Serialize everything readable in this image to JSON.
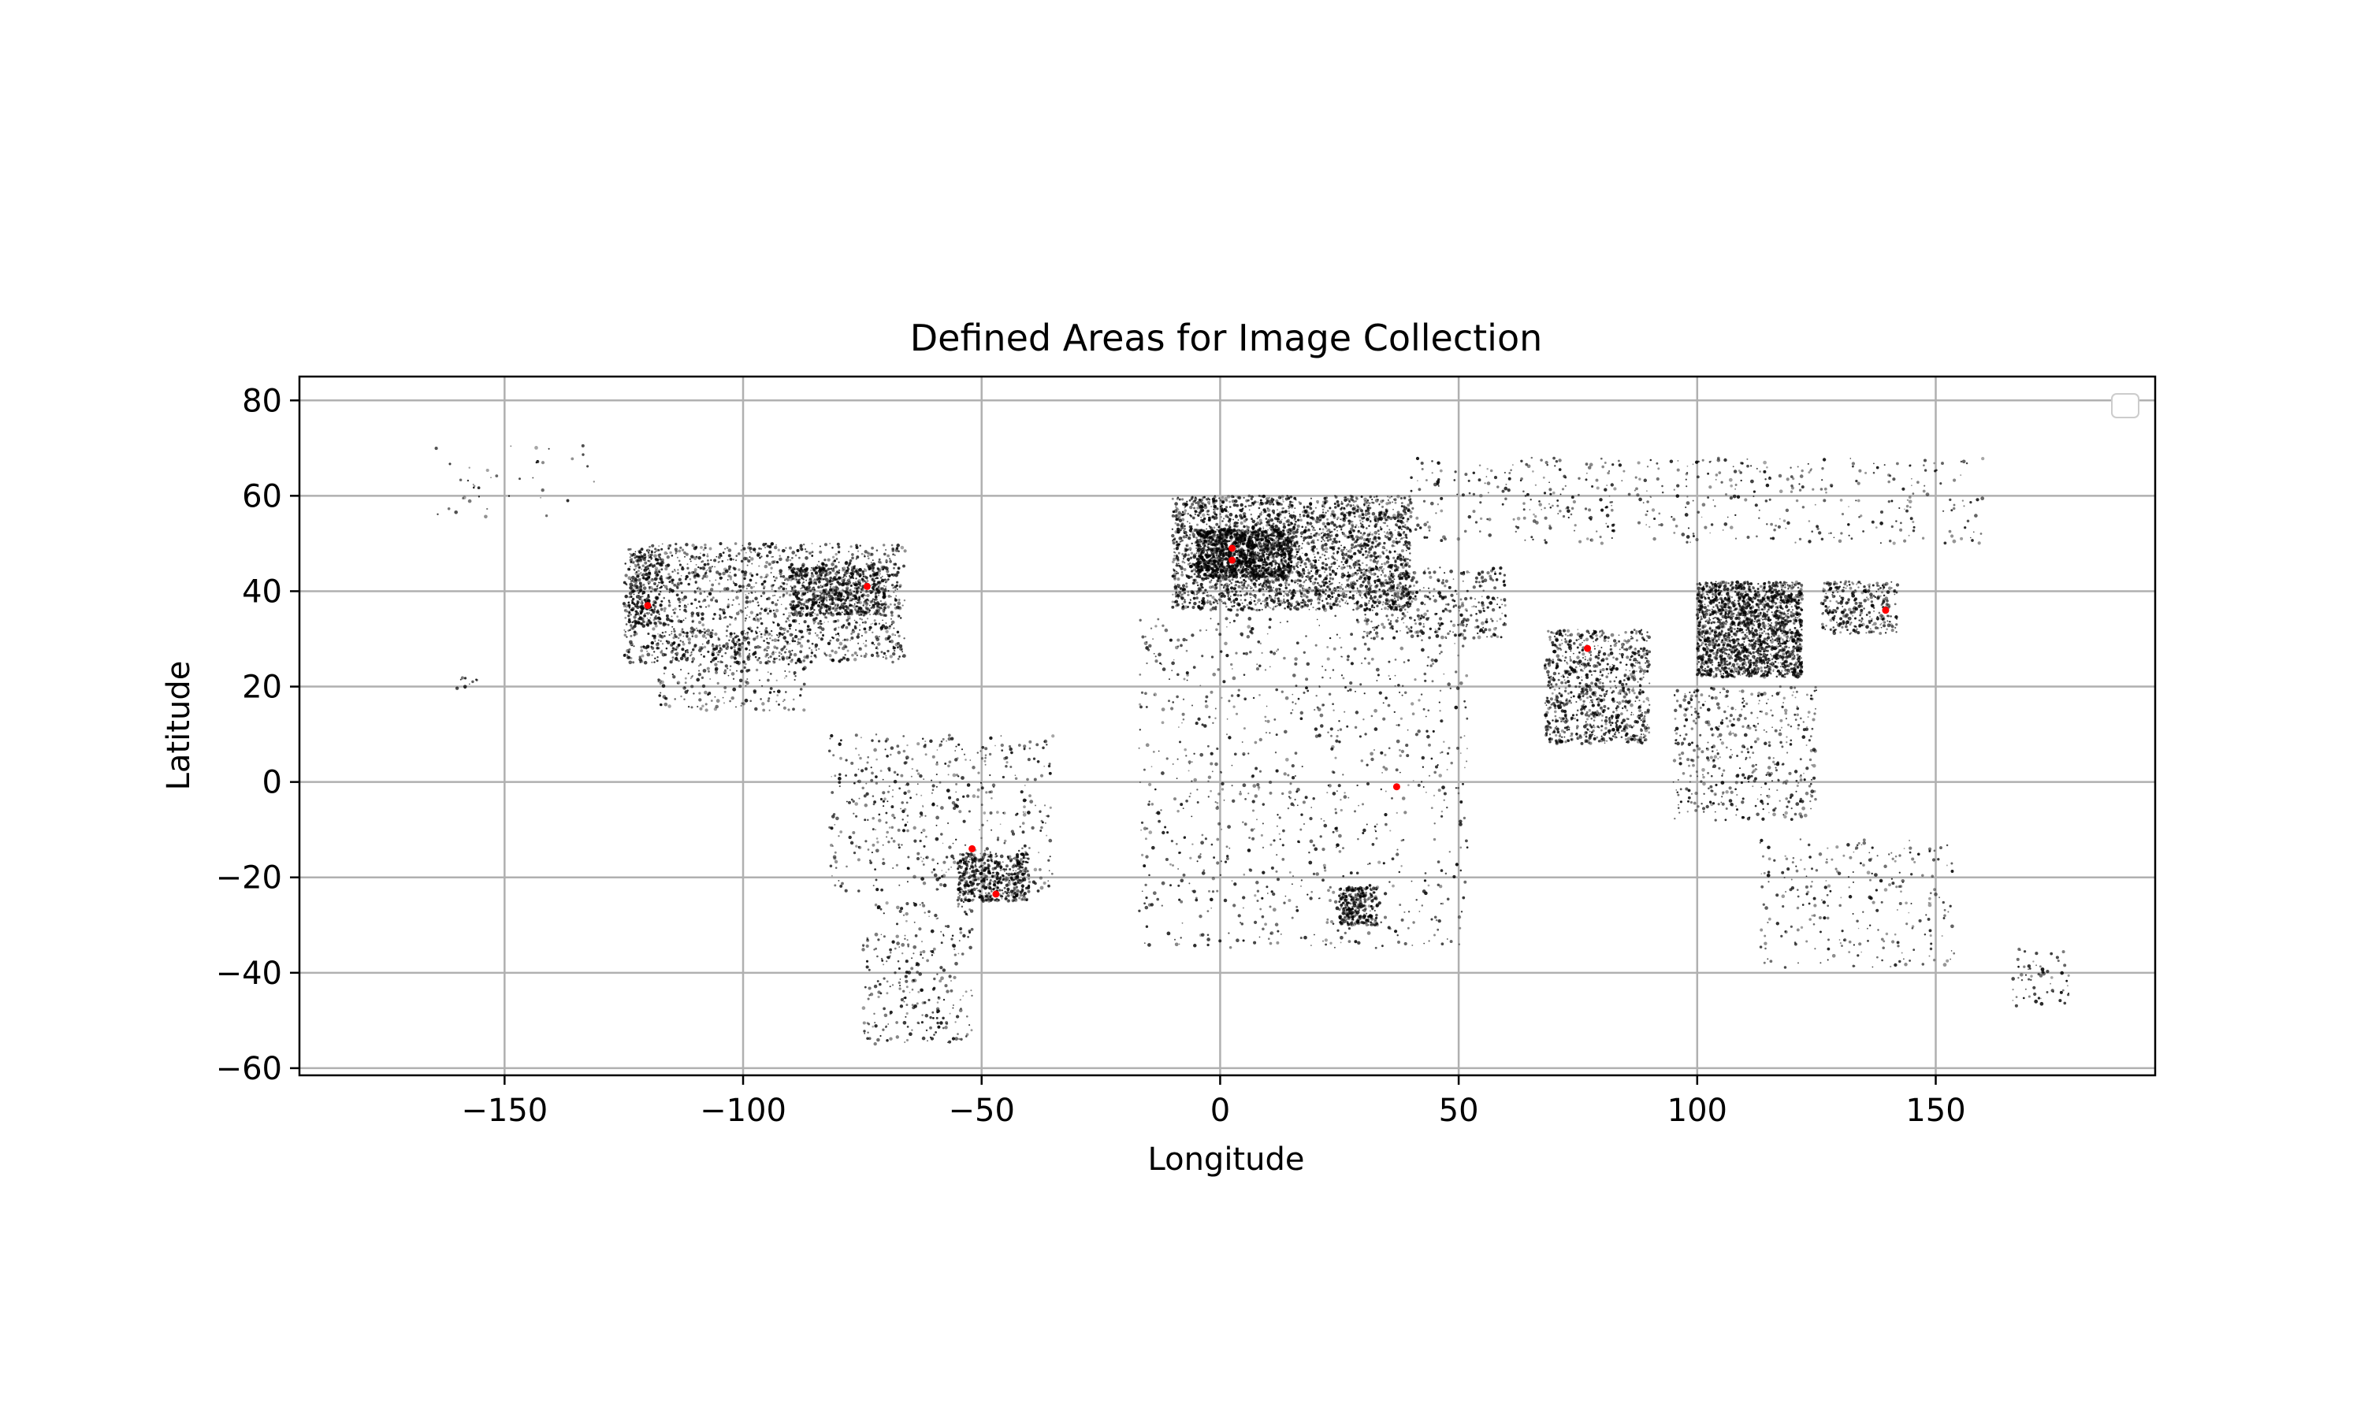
{
  "chart_data": {
    "type": "scatter",
    "title": "Defined Areas for Image Collection",
    "xlabel": "Longitude",
    "ylabel": "Latitude",
    "xlim": [
      -193,
      196
    ],
    "ylim": [
      -61.5,
      85
    ],
    "xticks": [
      -150,
      -100,
      -50,
      0,
      50,
      100,
      150
    ],
    "yticks": [
      -60,
      -40,
      -20,
      0,
      20,
      40,
      60,
      80
    ],
    "grid": true,
    "legend": {
      "placement": "top-right",
      "entries": []
    },
    "colors": {
      "background_points": "#000000",
      "defined_areas": "#ff0000",
      "grid": "#b0b0b0"
    },
    "series": [
      {
        "role": "background_points",
        "color": "#000000",
        "regions": [
          {
            "x": [
              -125,
              -66
            ],
            "y": [
              25,
              50
            ],
            "weight": 1500
          },
          {
            "x": [
              -90,
              -70
            ],
            "y": [
              35,
              45
            ],
            "weight": 600
          },
          {
            "x": [
              -124,
              -117
            ],
            "y": [
              33,
              49
            ],
            "weight": 250
          },
          {
            "x": [
              -118,
              -87
            ],
            "y": [
              15,
              32
            ],
            "weight": 280
          },
          {
            "x": [
              -165,
              -130
            ],
            "y": [
              55,
              71
            ],
            "weight": 40
          },
          {
            "x": [
              -160,
              -155
            ],
            "y": [
              19,
              22
            ],
            "weight": 10
          },
          {
            "x": [
              -82,
              -35
            ],
            "y": [
              -23,
              10
            ],
            "weight": 500
          },
          {
            "x": [
              -55,
              -40
            ],
            "y": [
              -25,
              -15
            ],
            "weight": 500
          },
          {
            "x": [
              -75,
              -52
            ],
            "y": [
              -55,
              -25
            ],
            "weight": 280
          },
          {
            "x": [
              -10,
              40
            ],
            "y": [
              36,
              60
            ],
            "weight": 2600
          },
          {
            "x": [
              -5,
              15
            ],
            "y": [
              43,
              53
            ],
            "weight": 1200
          },
          {
            "x": [
              40,
              160
            ],
            "y": [
              50,
              68
            ],
            "weight": 500
          },
          {
            "x": [
              30,
              60
            ],
            "y": [
              30,
              45
            ],
            "weight": 350
          },
          {
            "x": [
              68,
              90
            ],
            "y": [
              8,
              32
            ],
            "weight": 900
          },
          {
            "x": [
              100,
              122
            ],
            "y": [
              22,
              42
            ],
            "weight": 1800
          },
          {
            "x": [
              126,
              142
            ],
            "y": [
              31,
              42
            ],
            "weight": 300
          },
          {
            "x": [
              95,
              125
            ],
            "y": [
              -8,
              20
            ],
            "weight": 450
          },
          {
            "x": [
              -17,
              52
            ],
            "y": [
              -35,
              35
            ],
            "weight": 900
          },
          {
            "x": [
              25,
              33
            ],
            "y": [
              -30,
              -22
            ],
            "weight": 300
          },
          {
            "x": [
              113,
              154
            ],
            "y": [
              -39,
              -12
            ],
            "weight": 260
          },
          {
            "x": [
              166,
              178
            ],
            "y": [
              -47,
              -35
            ],
            "weight": 60
          }
        ]
      },
      {
        "role": "defined_areas",
        "color": "#ff0000",
        "points": [
          {
            "x": -120,
            "y": 37
          },
          {
            "x": -74,
            "y": 41
          },
          {
            "x": 2.5,
            "y": 49
          },
          {
            "x": 2.5,
            "y": 46.5
          },
          {
            "x": 77,
            "y": 28
          },
          {
            "x": 139.5,
            "y": 36
          },
          {
            "x": -52,
            "y": -14
          },
          {
            "x": -47,
            "y": -23.5
          },
          {
            "x": 37,
            "y": -1
          }
        ]
      }
    ]
  }
}
